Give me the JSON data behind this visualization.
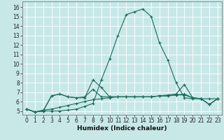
{
  "title": "",
  "xlabel": "Humidex (Indice chaleur)",
  "bg_color": "#c8e8e8",
  "grid_color": "#ffffff",
  "line_color": "#1a6b5a",
  "xlim": [
    -0.5,
    23.5
  ],
  "ylim": [
    4.6,
    16.6
  ],
  "xticks": [
    0,
    1,
    2,
    3,
    4,
    5,
    6,
    7,
    8,
    9,
    10,
    11,
    12,
    13,
    14,
    15,
    16,
    17,
    18,
    19,
    20,
    21,
    22,
    23
  ],
  "yticks": [
    5,
    6,
    7,
    8,
    9,
    10,
    11,
    12,
    13,
    14,
    15,
    16
  ],
  "series": [
    [
      5.2,
      4.9,
      5.0,
      5.0,
      5.0,
      5.1,
      5.2,
      5.5,
      5.8,
      8.3,
      10.5,
      13.0,
      15.2,
      15.5,
      15.8,
      15.0,
      12.2,
      10.4,
      8.0,
      6.4,
      6.3,
      6.3,
      6.3,
      6.3
    ],
    [
      5.2,
      4.9,
      5.0,
      6.6,
      6.8,
      6.5,
      6.4,
      6.4,
      8.3,
      7.5,
      6.5,
      6.5,
      6.5,
      6.5,
      6.5,
      6.5,
      6.6,
      6.7,
      6.8,
      7.8,
      6.4,
      6.3,
      5.7,
      6.3
    ],
    [
      5.2,
      4.9,
      5.0,
      6.6,
      6.8,
      6.5,
      6.4,
      6.5,
      7.3,
      6.5,
      6.5,
      6.5,
      6.5,
      6.5,
      6.5,
      6.5,
      6.6,
      6.6,
      6.7,
      6.7,
      6.4,
      6.3,
      5.7,
      6.3
    ],
    [
      5.2,
      4.9,
      5.1,
      5.2,
      5.4,
      5.6,
      5.8,
      6.0,
      6.2,
      6.3,
      6.4,
      6.5,
      6.5,
      6.5,
      6.5,
      6.5,
      6.6,
      6.6,
      6.7,
      6.8,
      6.4,
      6.3,
      5.7,
      6.3
    ]
  ],
  "marker": "+",
  "markersize": 3,
  "linewidth": 0.8,
  "tick_labelsize": 5.5,
  "xlabel_fontsize": 6.5
}
